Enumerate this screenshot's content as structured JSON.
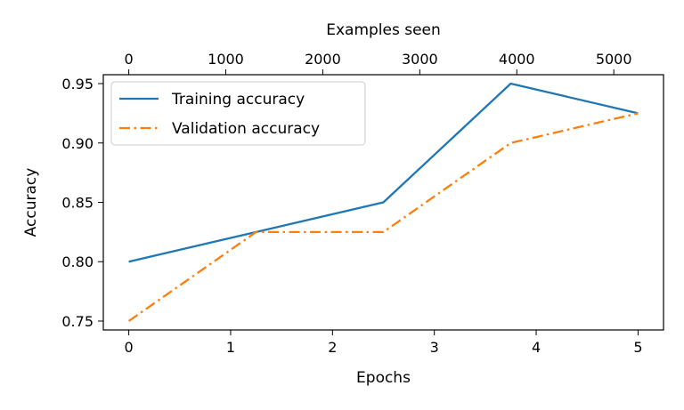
{
  "chart_data": {
    "type": "line",
    "title": "",
    "xlabel": "Epochs",
    "ylabel": "Accuracy",
    "x2label": "Examples seen",
    "xlim": [
      -0.25,
      5.25
    ],
    "ylim": [
      0.7425,
      0.9575
    ],
    "x2lim": [
      -262.5,
      5512.5
    ],
    "x_ticks": [
      0,
      1,
      2,
      3,
      4,
      5
    ],
    "y_ticks": [
      0.75,
      0.8,
      0.85,
      0.9,
      0.95
    ],
    "y_tick_labels": [
      "0.75",
      "0.80",
      "0.85",
      "0.90",
      "0.95"
    ],
    "x2_ticks": [
      0,
      1000,
      2000,
      3000,
      4000,
      5000
    ],
    "grid": false,
    "legend_position": "upper-left",
    "series": [
      {
        "name": "Training accuracy",
        "color": "#1f77b4",
        "line_style": "solid",
        "x": [
          0,
          1.25,
          2.5,
          3.75,
          5
        ],
        "y": [
          0.8,
          0.825,
          0.85,
          0.95,
          0.925
        ]
      },
      {
        "name": "Validation accuracy",
        "color": "#ff7f0e",
        "line_style": "dash-dot",
        "x": [
          0,
          1.25,
          2.5,
          3.75,
          5
        ],
        "y": [
          0.75,
          0.825,
          0.825,
          0.9,
          0.925
        ]
      }
    ]
  }
}
